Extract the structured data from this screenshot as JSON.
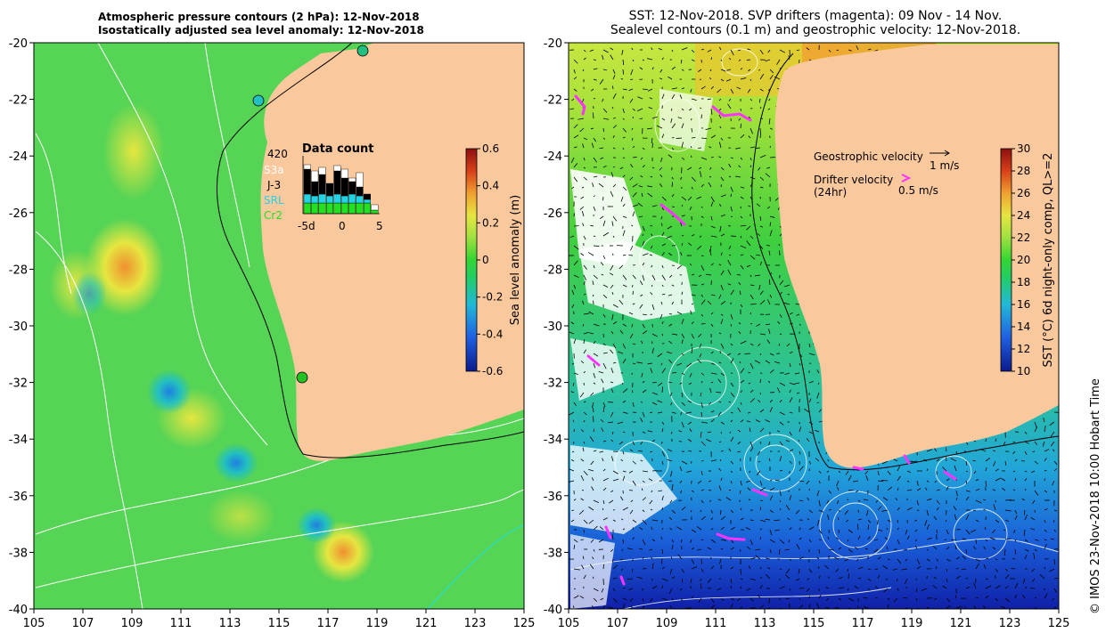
{
  "left_panel": {
    "title_line1": "Atmospheric pressure contours (2 hPa): 12-Nov-2018",
    "title_line2": "Isostatically adjusted sea level anomaly: 12-Nov-2018",
    "x_ticks": [
      "105",
      "107",
      "109",
      "111",
      "113",
      "115",
      "117",
      "119",
      "121",
      "123",
      "125"
    ],
    "y_ticks": [
      "-20",
      "-22",
      "-24",
      "-26",
      "-28",
      "-30",
      "-32",
      "-34",
      "-36",
      "-38",
      "-40"
    ],
    "colorbar_label": "Sea level anomaly (m)",
    "colorbar_ticks": [
      "0.6",
      "0.4",
      "0.2",
      "0",
      "-0.2",
      "-0.4",
      "-0.6"
    ],
    "inset": {
      "title": "Data count",
      "max_count": "420",
      "legend": [
        {
          "name": "S3a",
          "color": "#ffffff"
        },
        {
          "name": "J-3",
          "color": "#000000"
        },
        {
          "name": "SRL",
          "color": "#22d3e6"
        },
        {
          "name": "Cr2",
          "color": "#22e022"
        }
      ],
      "x_ticks": [
        "-5d",
        "0",
        "5"
      ]
    }
  },
  "right_panel": {
    "title_line1": "SST: 12-Nov-2018. SVP drifters (magenta): 09 Nov - 14 Nov.",
    "title_line2": "Sealevel contours (0.1 m) and geostrophic velocity: 12-Nov-2018.",
    "x_ticks": [
      "105",
      "107",
      "109",
      "111",
      "113",
      "115",
      "117",
      "119",
      "121",
      "123",
      "125"
    ],
    "y_ticks": [
      "-20",
      "-22",
      "-24",
      "-26",
      "-28",
      "-30",
      "-32",
      "-34",
      "-36",
      "-38",
      "-40"
    ],
    "legend_geo": "Geostrophic velocity",
    "legend_geo_scale": "1 m/s",
    "legend_drifter_line1": "Drifter velocity",
    "legend_drifter_line2": "(24hr)",
    "legend_drifter_scale": "0.5 m/s",
    "colorbar_label": "SST (°C) 6d night-only comp, QL>=2",
    "colorbar_ticks": [
      "30",
      "28",
      "26",
      "24",
      "22",
      "20",
      "18",
      "16",
      "14",
      "12",
      "10"
    ]
  },
  "footer_credit": "© IMOS 23-Nov-2018 10:00 Hobart Time",
  "colors": {
    "land": "#f9c89c",
    "ocean_green": "#3ccc3c",
    "ocean_light_green": "#7fe54a",
    "sst_cold": "#1844c8",
    "drifter": "#ff33ff"
  }
}
